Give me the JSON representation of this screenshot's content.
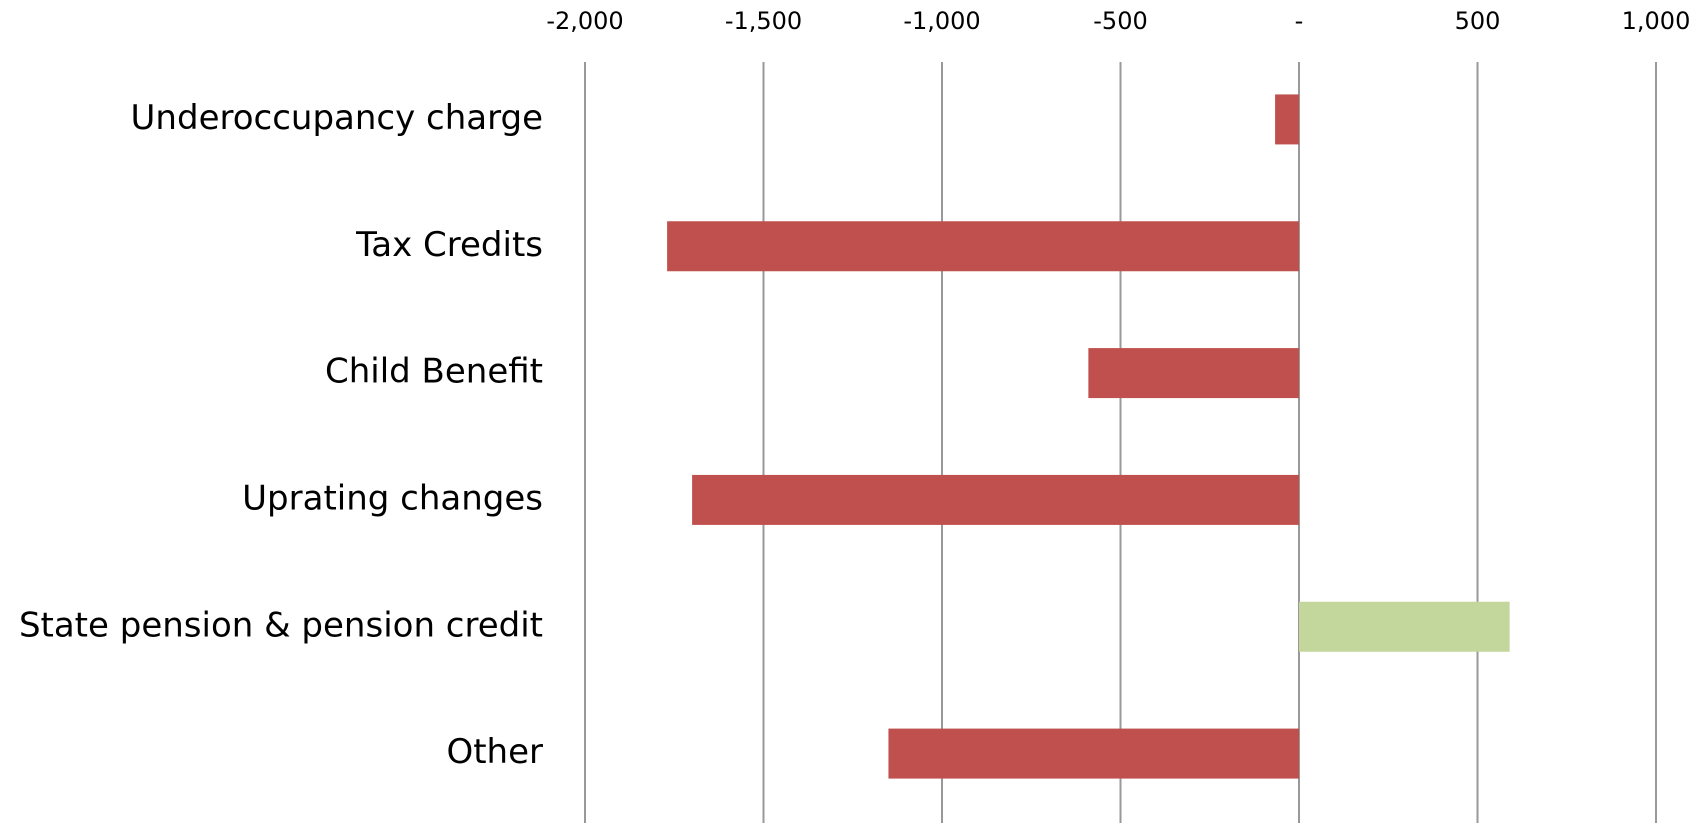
{
  "chart_data": {
    "type": "bar",
    "orientation": "horizontal",
    "categories": [
      "Underoccupancy charge",
      "Tax Credits",
      "Child Benefit",
      "Uprating changes",
      "State pension & pension credit",
      "Other"
    ],
    "values": [
      -67,
      -1770,
      -590,
      -1700,
      590,
      -1150
    ],
    "colors": [
      "#c0504d",
      "#c0504d",
      "#c0504d",
      "#c0504d",
      "#c3d69b",
      "#c0504d"
    ],
    "xlim": [
      -2000,
      1000
    ],
    "xticks": [
      {
        "value": -2000,
        "label": "-2,000"
      },
      {
        "value": -1500,
        "label": "-1,500"
      },
      {
        "value": -1000,
        "label": "-1,000"
      },
      -500,
      {
        "value": 0,
        "label": "-"
      },
      500,
      {
        "value": 1000,
        "label": "1,000"
      }
    ],
    "grid": true
  }
}
